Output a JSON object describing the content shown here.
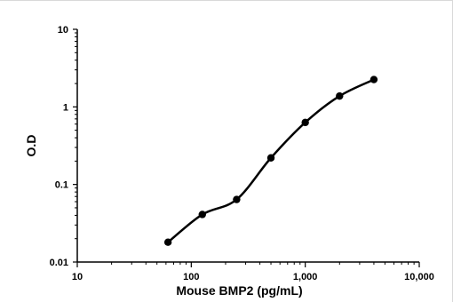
{
  "chart_data": {
    "type": "line",
    "title": "",
    "xlabel": "Mouse BMP2 (pg/mL)",
    "ylabel": "O.D",
    "xscale": "log",
    "yscale": "log",
    "xlim": [
      10,
      10000
    ],
    "ylim": [
      0.01,
      10
    ],
    "x_tick_labels": [
      "10",
      "100",
      "1,000",
      "10,000"
    ],
    "y_tick_labels": [
      "10",
      "1",
      "0.1",
      "0.01"
    ],
    "grid": false,
    "legend": "none",
    "series": [
      {
        "x": [
          62.5,
          125,
          250,
          500,
          1000,
          2000,
          4000
        ],
        "y": [
          0.018,
          0.041,
          0.064,
          0.22,
          0.63,
          1.38,
          2.25
        ],
        "color": "#000000",
        "marker": "circle",
        "smooth": true
      }
    ]
  }
}
